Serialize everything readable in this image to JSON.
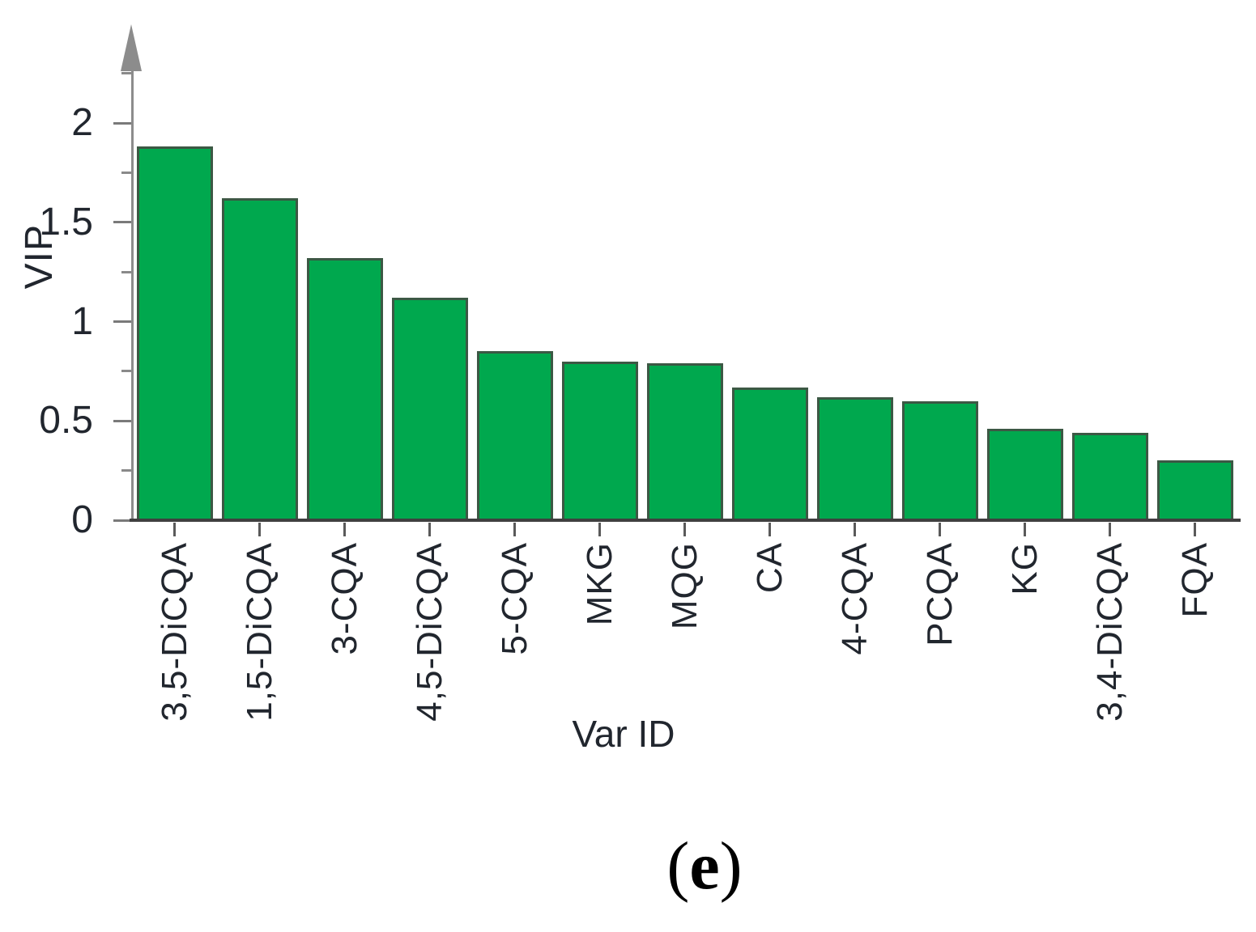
{
  "figure": {
    "caption": {
      "open": "(",
      "letter": "e",
      "close": ")"
    }
  },
  "chart_data": {
    "type": "bar",
    "title": "",
    "xlabel": "Var ID",
    "ylabel": "VIP",
    "categories": [
      "3,5-DiCQA",
      "1,5-DiCQA",
      "3-CQA",
      "4,5-DiCQA",
      "5-CQA",
      "MKG",
      "MQG",
      "CA",
      "4-CQA",
      "PCQA",
      "KG",
      "3,4-DiCQA",
      "FQA"
    ],
    "values": [
      1.88,
      1.62,
      1.32,
      1.12,
      0.85,
      0.8,
      0.79,
      0.67,
      0.62,
      0.6,
      0.46,
      0.44,
      0.3
    ],
    "ylim": [
      0,
      2.35
    ],
    "yticks_major": [
      0,
      0.5,
      1,
      1.5,
      2
    ],
    "ytick_labels": [
      "0",
      "0.5",
      "1",
      "1.5",
      "2"
    ],
    "yticks_minor": [
      0.25,
      0.75,
      1.25,
      1.75,
      2.25
    ],
    "bar_color": "#00a84e",
    "bar_border_color": "#3c5844",
    "axis_color": "#8c8c8c",
    "baseline_color": "#3f3f3f",
    "text_color": "#21262e",
    "grid": false,
    "legend": "none"
  }
}
